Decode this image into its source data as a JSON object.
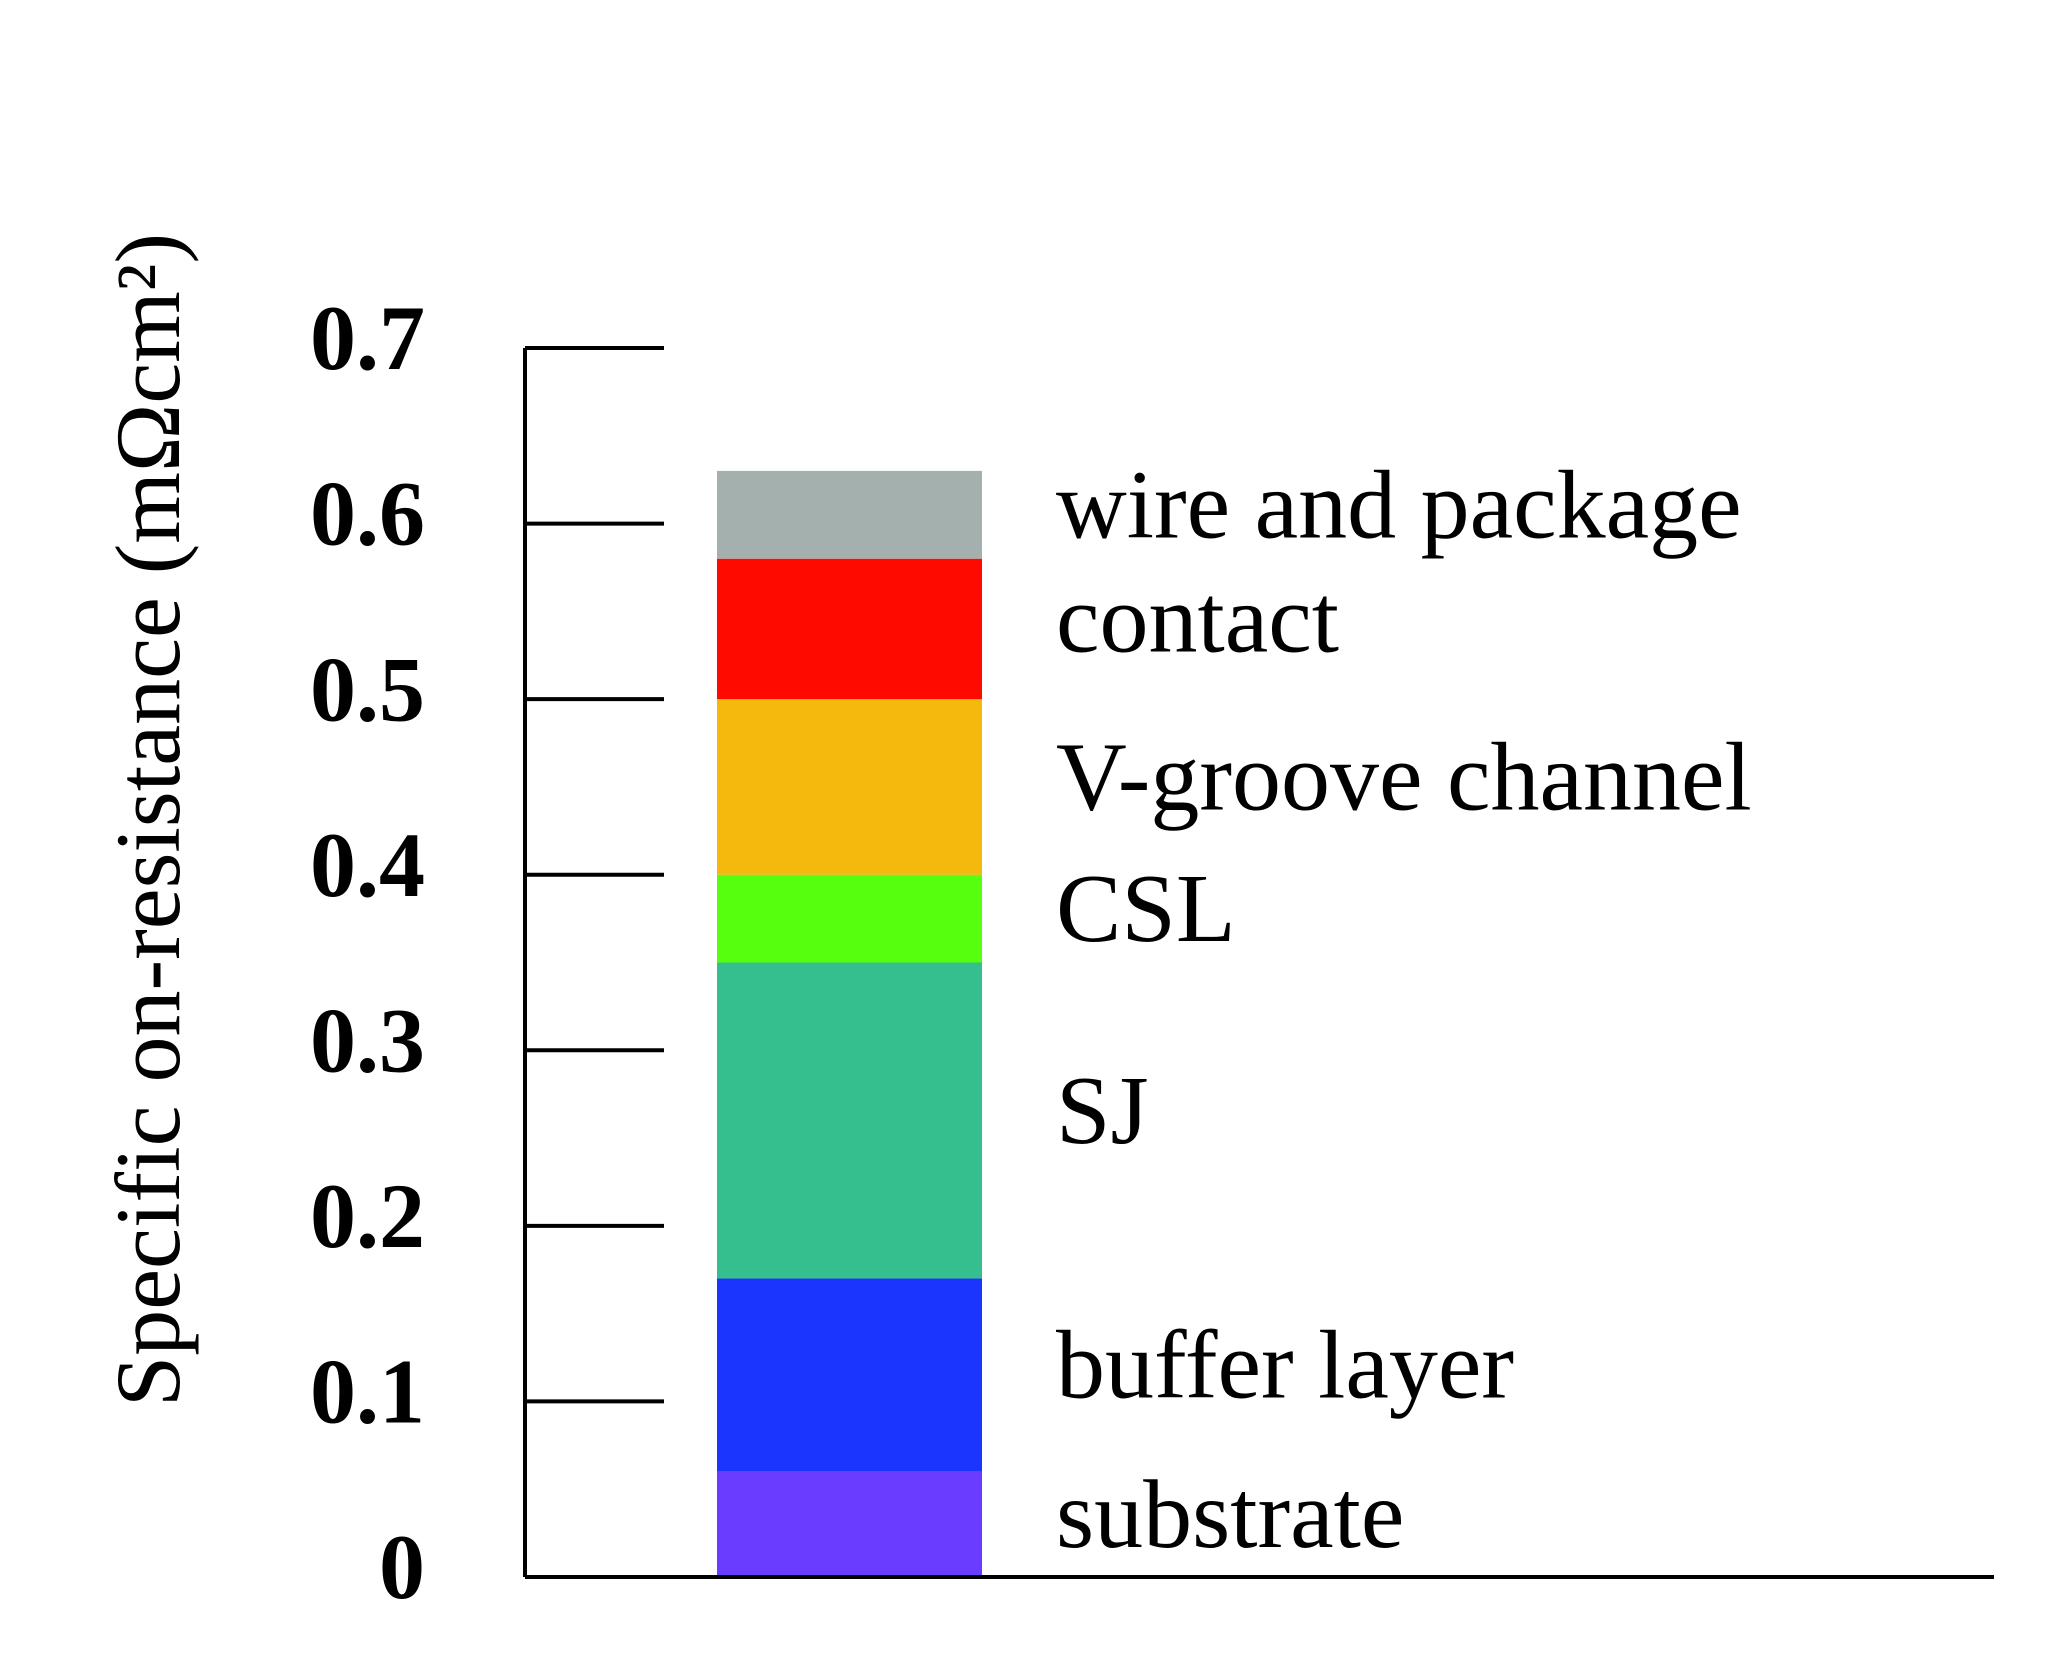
{
  "chart_data": {
    "type": "stacked_bar",
    "y_label": "Specific on-resistance (mΩcm²)",
    "categories": [
      null
    ],
    "series": [
      {
        "name": "substrate",
        "color": "#6a3cff",
        "values": [
          0.06
        ]
      },
      {
        "name": "buffer layer",
        "color": "#1b35ff",
        "values": [
          0.11
        ]
      },
      {
        "name": "SJ",
        "color": "#35bf8f",
        "values": [
          0.18
        ]
      },
      {
        "name": "CSL",
        "color": "#55ff0e",
        "values": [
          0.05
        ]
      },
      {
        "name": "V-groove channel",
        "color": "#f5b80c",
        "values": [
          0.1
        ]
      },
      {
        "name": "contact",
        "color": "#ff0a00",
        "values": [
          0.08
        ]
      },
      {
        "name": "wire and package",
        "color": "#a3b0ad",
        "values": [
          0.05
        ]
      }
    ],
    "ylim": [
      0,
      0.7
    ],
    "yticks": [
      0,
      0.1,
      0.2,
      0.3,
      0.4,
      0.5,
      0.6,
      0.7
    ]
  }
}
